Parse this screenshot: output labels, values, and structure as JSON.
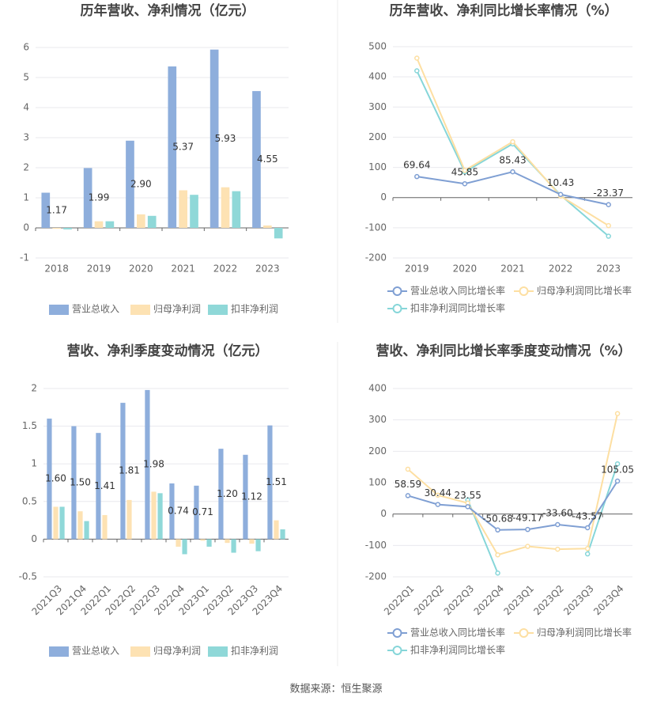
{
  "chart_data": [
    {
      "type": "bar",
      "title": "历年营收、净利情况（亿元）",
      "categories": [
        "2018",
        "2019",
        "2020",
        "2021",
        "2022",
        "2023"
      ],
      "series": [
        {
          "name": "营业总收入",
          "color": "#8eaedc",
          "values": [
            1.17,
            1.99,
            2.9,
            5.37,
            5.93,
            4.55
          ],
          "value_labels": [
            "1.17",
            "1.99",
            "2.90",
            "5.37",
            "5.93",
            "4.55"
          ]
        },
        {
          "name": "归母净利润",
          "color": "#fde2b3",
          "values": [
            -0.03,
            0.22,
            0.45,
            1.25,
            1.35,
            0.08
          ]
        },
        {
          "name": "扣非净利润",
          "color": "#8fd8d8",
          "values": [
            -0.05,
            0.22,
            0.4,
            1.1,
            1.22,
            -0.35
          ]
        }
      ],
      "ylim": [
        -1,
        6
      ],
      "yticks": [
        -1,
        0,
        1,
        2,
        3,
        4,
        5,
        6
      ],
      "grid": true
    },
    {
      "type": "line",
      "title": "历年营收、净利同比增长率情况（%）",
      "categories": [
        "2019",
        "2020",
        "2021",
        "2022",
        "2023"
      ],
      "series": [
        {
          "name": "营业总收入同比增长率",
          "color": "#7f9fd3",
          "values": [
            69.64,
            45.85,
            85.43,
            10.43,
            -23.37
          ],
          "labels": true
        },
        {
          "name": "归母净利润同比增长率",
          "color": "#fddfa2",
          "values": [
            462,
            90,
            185,
            5,
            -93
          ]
        },
        {
          "name": "扣非净利润同比增长率",
          "color": "#86d6d9",
          "values": [
            420,
            85,
            178,
            8,
            -128
          ]
        }
      ],
      "ylim": [
        -200,
        500
      ],
      "yticks": [
        -200,
        -100,
        0,
        100,
        200,
        300,
        400,
        500
      ],
      "grid": true
    },
    {
      "type": "bar",
      "title": "营收、净利季度变动情况（亿元）",
      "categories": [
        "2021Q3",
        "2021Q4",
        "2022Q1",
        "2022Q2",
        "2022Q3",
        "2022Q4",
        "2023Q1",
        "2023Q2",
        "2023Q3",
        "2023Q4"
      ],
      "series": [
        {
          "name": "营业总收入",
          "color": "#8eaedc",
          "values": [
            1.6,
            1.5,
            1.41,
            1.81,
            1.98,
            0.74,
            0.71,
            1.2,
            1.12,
            1.51
          ],
          "value_labels": [
            "1.60",
            "1.50",
            "1.41",
            "1.81",
            "1.98",
            "0.74",
            "0.71",
            "1.20",
            "1.12",
            "1.51"
          ]
        },
        {
          "name": "归母净利润",
          "color": "#fde2b3",
          "values": [
            0.43,
            0.37,
            0.32,
            0.52,
            0.63,
            -0.1,
            -0.02,
            -0.05,
            -0.06,
            0.25
          ]
        },
        {
          "name": "扣非净利润",
          "color": "#8fd8d8",
          "values": [
            0.43,
            0.24,
            null,
            null,
            0.61,
            -0.2,
            -0.1,
            -0.18,
            -0.16,
            0.13
          ]
        }
      ],
      "ylim": [
        -0.5,
        2
      ],
      "yticks": [
        -0.5,
        0,
        0.5,
        1,
        1.5,
        2
      ],
      "grid": true
    },
    {
      "type": "line",
      "title": "营收、净利同比增长率季度变动情况（%）",
      "categories": [
        "2022Q1",
        "2022Q2",
        "2022Q3",
        "2022Q4",
        "2023Q1",
        "2023Q2",
        "2023Q3",
        "2023Q4"
      ],
      "series": [
        {
          "name": "营业总收入同比增长率",
          "color": "#7f9fd3",
          "values": [
            58.59,
            30.44,
            23.55,
            -50.68,
            -49.17,
            -33.6,
            -43.57,
            105.05
          ],
          "value_labels": [
            "58.59",
            "30.44",
            "23.55",
            "-50.68",
            "-49.17",
            "-33.60",
            "-43.57",
            "105.05"
          ]
        },
        {
          "name": "归母净利润同比增长率",
          "color": "#fddfa2",
          "values": [
            143,
            60,
            35,
            -130,
            -103,
            -112,
            -110,
            320
          ]
        },
        {
          "name": "扣非净利润同比增长率",
          "color": "#86d6d9",
          "values": [
            null,
            null,
            45,
            -188,
            null,
            null,
            -127,
            160
          ]
        }
      ],
      "ylim": [
        -200,
        400
      ],
      "yticks": [
        -200,
        -100,
        0,
        100,
        200,
        300,
        400
      ],
      "grid": true
    }
  ],
  "footer": "数据来源：恒生聚源"
}
